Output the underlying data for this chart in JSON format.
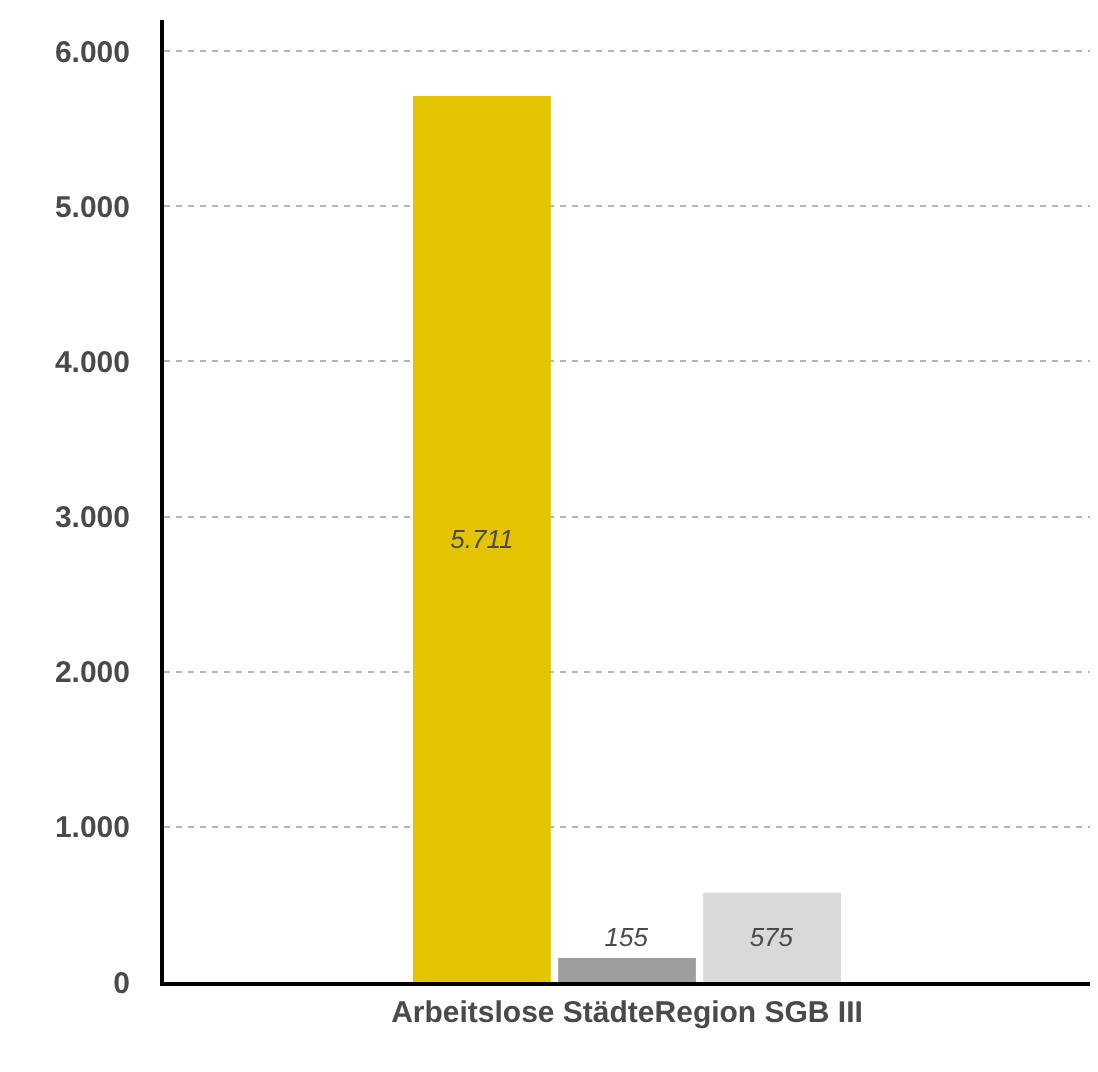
{
  "chart_data": {
    "type": "bar",
    "categories": [
      "Arbeitslose StädteRegion SGB III"
    ],
    "series": [
      {
        "color": "#e2c400",
        "values": [
          5711
        ],
        "value_labels": [
          "5.711"
        ]
      },
      {
        "color": "#9d9d9c",
        "values": [
          155
        ],
        "value_labels": [
          "155"
        ]
      },
      {
        "color": "#d9d9d9",
        "values": [
          575
        ],
        "value_labels": [
          "575"
        ]
      }
    ],
    "ylim": [
      0,
      6200
    ],
    "yticks": [
      {
        "value": 0,
        "label": "0"
      },
      {
        "value": 1000,
        "label": "1.000"
      },
      {
        "value": 2000,
        "label": "2.000"
      },
      {
        "value": 3000,
        "label": "3.000"
      },
      {
        "value": 4000,
        "label": "4.000"
      },
      {
        "value": 5000,
        "label": "5.000"
      },
      {
        "value": 6000,
        "label": "6.000"
      }
    ],
    "grid": "y"
  }
}
